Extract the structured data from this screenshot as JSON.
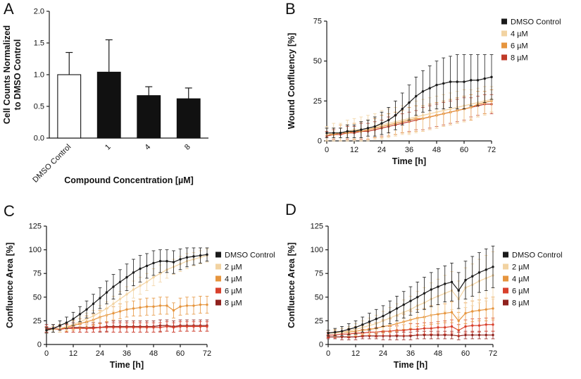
{
  "panels": [
    {
      "label": "A"
    },
    {
      "label": "B"
    },
    {
      "label": "C"
    },
    {
      "label": "D"
    }
  ],
  "colors": {
    "black": "#1a1a1a",
    "tan": "#f2d3a2",
    "orange": "#e6953e",
    "red": "#d8402c",
    "dark_red": "#8f211d",
    "brick": "#c03a28"
  },
  "chart_data": [
    {
      "id": "A",
      "type": "bar",
      "title": "",
      "categories": [
        "DMSO Control",
        "1",
        "4",
        "8"
      ],
      "values": [
        1.0,
        1.04,
        0.67,
        0.62
      ],
      "errors": [
        0.35,
        0.51,
        0.14,
        0.17
      ],
      "bar_fills": [
        "#ffffff",
        "#111111",
        "#111111",
        "#111111"
      ],
      "xlabel": "Compound Concentration [µM]",
      "ylabel": [
        "Cell Counts Normalized",
        "to DMSO Control"
      ],
      "ylim": [
        0,
        2.0
      ],
      "yticks": [
        0,
        0.5,
        1.0,
        1.5,
        2.0
      ],
      "ytick_decimals": 1,
      "grid": false
    },
    {
      "id": "B",
      "type": "line",
      "title": "",
      "xlabel": "Time [h]",
      "ylabel": "Wound Confluency [%]",
      "xlim": [
        0,
        72
      ],
      "xticks": [
        0,
        12,
        24,
        36,
        48,
        60,
        72
      ],
      "ylim": [
        0,
        75
      ],
      "yticks": [
        0,
        25,
        50,
        75
      ],
      "legend_position": "right",
      "grid": false,
      "x": [
        0,
        3,
        6,
        9,
        12,
        15,
        18,
        21,
        24,
        27,
        30,
        33,
        36,
        39,
        42,
        45,
        48,
        51,
        54,
        57,
        60,
        63,
        66,
        69,
        72
      ],
      "series": [
        {
          "name": "DMSO Control",
          "color": "#1a1a1a",
          "values": [
            5,
            5,
            5,
            6,
            6,
            7,
            8,
            9,
            11,
            13,
            16,
            20,
            24,
            28,
            31,
            33,
            35,
            36,
            37,
            37,
            37,
            38,
            38,
            39,
            40
          ],
          "errors": [
            3,
            3,
            3,
            4,
            4,
            5,
            5,
            6,
            7,
            8,
            9,
            10,
            11,
            12,
            13,
            14,
            15,
            16,
            16,
            17,
            17,
            16,
            16,
            15,
            14
          ]
        },
        {
          "name": "4 µM",
          "color": "#f2d3a2",
          "values": [
            4,
            5,
            5,
            6,
            7,
            7,
            8,
            9,
            10,
            11,
            12,
            13,
            14,
            15,
            16,
            17,
            18,
            19,
            20,
            21,
            22,
            23,
            24,
            25,
            26
          ],
          "errors": [
            5,
            6,
            6,
            7,
            7,
            8,
            8,
            8,
            9,
            9,
            9,
            9,
            10,
            10,
            10,
            10,
            10,
            10,
            10,
            10,
            10,
            9,
            9,
            9,
            8
          ]
        },
        {
          "name": "6 µM",
          "color": "#e6953e",
          "values": [
            4,
            4,
            5,
            5,
            6,
            6,
            7,
            8,
            9,
            10,
            11,
            12,
            13,
            14,
            14,
            15,
            16,
            17,
            18,
            19,
            20,
            21,
            23,
            24,
            25
          ],
          "errors": [
            4,
            4,
            5,
            5,
            5,
            6,
            6,
            6,
            7,
            7,
            7,
            7,
            8,
            8,
            8,
            8,
            8,
            8,
            8,
            8,
            8,
            8,
            8,
            7,
            7
          ]
        },
        {
          "name": "8 µM",
          "color": "#c03a28",
          "values": [
            3,
            4,
            4,
            5,
            5,
            6,
            6,
            7,
            8,
            9,
            10,
            11,
            12,
            13,
            14,
            15,
            16,
            17,
            18,
            19,
            20,
            21,
            22,
            23,
            23
          ],
          "errors": [
            3,
            3,
            4,
            4,
            4,
            5,
            5,
            5,
            5,
            6,
            6,
            6,
            6,
            6,
            7,
            7,
            7,
            7,
            7,
            7,
            7,
            6,
            6,
            6,
            6
          ]
        }
      ]
    },
    {
      "id": "C",
      "type": "line",
      "title": "",
      "xlabel": "Time [h]",
      "ylabel": "Confluence Area [%]",
      "xlim": [
        0,
        72
      ],
      "xticks": [
        0,
        12,
        24,
        36,
        48,
        60,
        72
      ],
      "ylim": [
        0,
        125
      ],
      "yticks": [
        0,
        25,
        50,
        75,
        100,
        125
      ],
      "legend_position": "right",
      "grid": false,
      "x": [
        0,
        3,
        6,
        9,
        12,
        15,
        18,
        21,
        24,
        27,
        30,
        33,
        36,
        39,
        42,
        45,
        48,
        51,
        54,
        57,
        60,
        63,
        66,
        69,
        72
      ],
      "series": [
        {
          "name": "DMSO Control",
          "color": "#1a1a1a",
          "values": [
            15,
            17,
            20,
            23,
            27,
            32,
            37,
            43,
            49,
            55,
            61,
            66,
            71,
            76,
            80,
            83,
            86,
            88,
            88,
            87,
            90,
            92,
            93,
            94,
            95
          ],
          "errors": [
            3,
            4,
            5,
            6,
            7,
            8,
            9,
            10,
            11,
            12,
            13,
            13,
            14,
            14,
            14,
            13,
            13,
            12,
            12,
            12,
            11,
            10,
            9,
            8,
            7
          ]
        },
        {
          "name": "2 µM",
          "color": "#f2d3a2",
          "values": [
            15,
            16,
            17,
            19,
            21,
            24,
            27,
            30,
            34,
            38,
            43,
            48,
            53,
            58,
            62,
            66,
            71,
            75,
            79,
            82,
            85,
            88,
            90,
            92,
            94
          ],
          "errors": [
            3,
            3,
            4,
            4,
            5,
            5,
            6,
            6,
            7,
            7,
            8,
            8,
            8,
            9,
            9,
            9,
            9,
            9,
            9,
            8,
            8,
            8,
            7,
            7,
            7
          ]
        },
        {
          "name": "4 µM",
          "color": "#e6953e",
          "values": [
            15,
            16,
            17,
            18,
            20,
            22,
            24,
            26,
            29,
            31,
            33,
            35,
            37,
            38,
            39,
            40,
            40,
            41,
            41,
            36,
            40,
            41,
            41,
            42,
            42
          ],
          "errors": [
            3,
            3,
            4,
            4,
            5,
            5,
            6,
            6,
            7,
            7,
            7,
            8,
            8,
            8,
            9,
            9,
            9,
            9,
            9,
            8,
            9,
            9,
            9,
            9,
            9
          ]
        },
        {
          "name": "6 µM",
          "color": "#d8402c",
          "values": [
            16,
            16,
            16,
            17,
            17,
            17,
            17,
            17,
            18,
            18,
            18,
            18,
            18,
            18,
            18,
            18,
            18,
            18,
            19,
            18,
            19,
            19,
            19,
            19,
            19
          ],
          "errors": [
            3,
            3,
            3,
            4,
            4,
            4,
            4,
            4,
            4,
            5,
            5,
            5,
            5,
            5,
            5,
            5,
            5,
            5,
            5,
            5,
            5,
            5,
            5,
            5,
            5
          ]
        },
        {
          "name": "8 µM",
          "color": "#8f211d",
          "values": [
            17,
            17,
            17,
            17,
            18,
            18,
            18,
            18,
            18,
            19,
            19,
            19,
            19,
            19,
            19,
            19,
            19,
            20,
            20,
            19,
            20,
            20,
            20,
            20,
            20
          ],
          "errors": [
            4,
            4,
            4,
            4,
            5,
            5,
            5,
            5,
            5,
            5,
            6,
            6,
            6,
            6,
            6,
            6,
            6,
            6,
            6,
            6,
            6,
            6,
            6,
            6,
            6
          ]
        }
      ]
    },
    {
      "id": "D",
      "type": "line",
      "title": "",
      "xlabel": "Time [h]",
      "ylabel": "Confluence Area [%]",
      "xlim": [
        0,
        72
      ],
      "xticks": [
        0,
        12,
        24,
        36,
        48,
        60,
        72
      ],
      "ylim": [
        0,
        125
      ],
      "yticks": [
        0,
        25,
        50,
        75,
        100,
        125
      ],
      "legend_position": "right",
      "grid": false,
      "x": [
        0,
        3,
        6,
        9,
        12,
        15,
        18,
        21,
        24,
        27,
        30,
        33,
        36,
        39,
        42,
        45,
        48,
        51,
        54,
        57,
        60,
        63,
        66,
        69,
        72
      ],
      "series": [
        {
          "name": "DMSO Control",
          "color": "#1a1a1a",
          "values": [
            12,
            13,
            14,
            16,
            18,
            21,
            24,
            27,
            30,
            34,
            38,
            42,
            46,
            50,
            54,
            58,
            61,
            64,
            66,
            57,
            68,
            72,
            76,
            79,
            82
          ],
          "errors": [
            3,
            4,
            5,
            6,
            7,
            8,
            9,
            10,
            11,
            12,
            13,
            14,
            15,
            16,
            17,
            18,
            19,
            19,
            20,
            19,
            20,
            21,
            21,
            22,
            22
          ]
        },
        {
          "name": "2 µM",
          "color": "#f2d3a2",
          "values": [
            12,
            12,
            13,
            14,
            16,
            18,
            20,
            22,
            25,
            28,
            31,
            34,
            37,
            41,
            44,
            48,
            51,
            54,
            57,
            48,
            60,
            63,
            67,
            70,
            73
          ],
          "errors": [
            3,
            4,
            4,
            5,
            6,
            7,
            8,
            9,
            10,
            11,
            12,
            13,
            14,
            15,
            16,
            17,
            18,
            19,
            20,
            19,
            21,
            22,
            23,
            24,
            25
          ]
        },
        {
          "name": "4 µM",
          "color": "#e6953e",
          "values": [
            12,
            12,
            13,
            13,
            14,
            15,
            16,
            17,
            19,
            20,
            22,
            24,
            26,
            28,
            29,
            31,
            32,
            33,
            34,
            25,
            33,
            35,
            36,
            37,
            38
          ],
          "errors": [
            3,
            3,
            4,
            4,
            5,
            5,
            6,
            6,
            7,
            7,
            8,
            8,
            9,
            9,
            9,
            10,
            10,
            10,
            11,
            9,
            11,
            11,
            11,
            12,
            12
          ]
        },
        {
          "name": "6 µM",
          "color": "#d8402c",
          "values": [
            10,
            10,
            11,
            11,
            12,
            12,
            13,
            13,
            14,
            14,
            15,
            15,
            16,
            16,
            17,
            17,
            18,
            18,
            19,
            15,
            19,
            20,
            20,
            21,
            21
          ],
          "errors": [
            3,
            3,
            3,
            4,
            4,
            4,
            4,
            5,
            5,
            5,
            5,
            6,
            6,
            6,
            6,
            6,
            6,
            7,
            7,
            6,
            7,
            7,
            7,
            7,
            7
          ]
        },
        {
          "name": "8 µM",
          "color": "#8f211d",
          "values": [
            8,
            8,
            8,
            8,
            8,
            9,
            9,
            9,
            9,
            9,
            9,
            9,
            9,
            10,
            10,
            10,
            10,
            10,
            10,
            9,
            10,
            10,
            10,
            10,
            10
          ],
          "errors": [
            2,
            2,
            3,
            3,
            3,
            3,
            3,
            3,
            4,
            4,
            4,
            4,
            4,
            4,
            4,
            4,
            4,
            4,
            4,
            4,
            4,
            4,
            4,
            4,
            4
          ]
        }
      ]
    }
  ]
}
